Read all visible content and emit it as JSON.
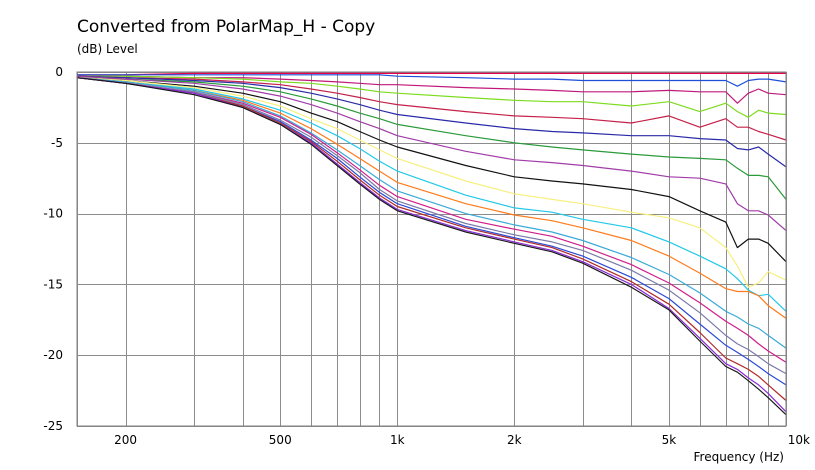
{
  "title": "Converted from PolarMap_H - Copy",
  "y_unit_label": "(dB)  Level",
  "x_axis_label": "Frequency  (Hz)",
  "chart_data": {
    "type": "line",
    "title": "Converted from PolarMap_H - Copy",
    "xlabel": "Frequency  (Hz)",
    "ylabel": "(dB)  Level",
    "x_scale": "log",
    "xlim": [
      150,
      10000
    ],
    "ylim": [
      -25,
      0
    ],
    "grid": true,
    "x_ticks": [
      {
        "value": 200,
        "label": "200"
      },
      {
        "value": 500,
        "label": "500"
      },
      {
        "value": 1000,
        "label": "1k"
      },
      {
        "value": 2000,
        "label": "2k"
      },
      {
        "value": 5000,
        "label": "5k"
      },
      {
        "value": 10000,
        "label": "10k"
      }
    ],
    "y_ticks": [
      {
        "value": 0,
        "label": "0"
      },
      {
        "value": -5,
        "label": "-5"
      },
      {
        "value": -10,
        "label": "-10"
      },
      {
        "value": -15,
        "label": "-15"
      },
      {
        "value": -20,
        "label": "-20"
      },
      {
        "value": -25,
        "label": "-25"
      }
    ],
    "x_gridlines": [
      150,
      200,
      300,
      400,
      500,
      600,
      700,
      800,
      900,
      1000,
      2000,
      3000,
      4000,
      5000,
      6000,
      7000,
      8000,
      9000,
      10000
    ],
    "y_gridlines": [
      0,
      -5,
      -10,
      -15,
      -20,
      -25
    ],
    "x": [
      150,
      200,
      300,
      400,
      500,
      600,
      700,
      800,
      900,
      1000,
      1500,
      2000,
      2500,
      3000,
      4000,
      5000,
      6000,
      7000,
      7500,
      8000,
      8500,
      9000,
      10000
    ],
    "series": [
      {
        "color": "#e8004a",
        "values": [
          -0.2,
          -0.2,
          -0.1,
          -0.1,
          -0.1,
          -0.1,
          -0.1,
          -0.1,
          -0.1,
          -0.1,
          -0.1,
          -0.1,
          -0.1,
          -0.1,
          -0.1,
          -0.1,
          -0.1,
          -0.1,
          -0.1,
          -0.1,
          -0.1,
          -0.1,
          -0.1
        ]
      },
      {
        "color": "#1d4ed8",
        "values": [
          -0.2,
          -0.2,
          -0.2,
          -0.2,
          -0.2,
          -0.2,
          -0.2,
          -0.2,
          -0.2,
          -0.3,
          -0.4,
          -0.5,
          -0.5,
          -0.6,
          -0.6,
          -0.6,
          -0.6,
          -0.6,
          -1.0,
          -0.6,
          -0.5,
          -0.5,
          -0.7
        ]
      },
      {
        "color": "#c0187a",
        "values": [
          -0.3,
          -0.3,
          -0.4,
          -0.4,
          -0.5,
          -0.6,
          -0.7,
          -0.8,
          -0.9,
          -0.9,
          -1.1,
          -1.2,
          -1.3,
          -1.4,
          -1.4,
          -1.3,
          -1.4,
          -1.4,
          -2.2,
          -1.5,
          -1.2,
          -1.5,
          -1.6
        ]
      },
      {
        "color": "#7ddc1f",
        "values": [
          -0.3,
          -0.3,
          -0.4,
          -0.5,
          -0.7,
          -0.8,
          -1.0,
          -1.2,
          -1.4,
          -1.5,
          -1.8,
          -2.0,
          -2.1,
          -2.1,
          -2.4,
          -2.1,
          -2.8,
          -2.2,
          -2.8,
          -3.2,
          -2.7,
          -2.9,
          -3.0
        ]
      },
      {
        "color": "#c4204a",
        "values": [
          -0.3,
          -0.4,
          -0.5,
          -0.7,
          -0.9,
          -1.2,
          -1.5,
          -1.8,
          -2.1,
          -2.3,
          -2.8,
          -3.1,
          -3.2,
          -3.3,
          -3.6,
          -3.1,
          -3.9,
          -3.3,
          -3.9,
          -3.9,
          -4.2,
          -4.4,
          -4.8
        ]
      },
      {
        "color": "#2a2aa8",
        "values": [
          -0.3,
          -0.4,
          -0.6,
          -0.8,
          -1.1,
          -1.5,
          -1.9,
          -2.3,
          -2.7,
          -3.0,
          -3.6,
          -4.0,
          -4.2,
          -4.3,
          -4.5,
          -4.5,
          -4.7,
          -4.8,
          -5.4,
          -5.5,
          -5.3,
          -5.8,
          -6.7
        ]
      },
      {
        "color": "#2a9a3a",
        "values": [
          -0.3,
          -0.5,
          -0.7,
          -1.0,
          -1.4,
          -1.9,
          -2.4,
          -2.9,
          -3.3,
          -3.7,
          -4.5,
          -5.0,
          -5.3,
          -5.5,
          -5.8,
          -6.0,
          -6.1,
          -6.2,
          -6.8,
          -7.3,
          -7.3,
          -7.4,
          -9.0
        ]
      },
      {
        "color": "#a13ca8",
        "values": [
          -0.3,
          -0.5,
          -0.8,
          -1.2,
          -1.7,
          -2.3,
          -2.9,
          -3.5,
          -4.0,
          -4.5,
          -5.6,
          -6.2,
          -6.4,
          -6.6,
          -7.0,
          -7.4,
          -7.5,
          -7.9,
          -9.3,
          -9.8,
          -9.8,
          -10.1,
          -11.2
        ]
      },
      {
        "color": "#111111",
        "values": [
          -0.4,
          -0.6,
          -1.0,
          -1.5,
          -2.1,
          -2.9,
          -3.5,
          -4.2,
          -4.8,
          -5.3,
          -6.6,
          -7.4,
          -7.7,
          -7.9,
          -8.3,
          -8.8,
          -9.8,
          -10.6,
          -12.4,
          -11.8,
          -11.8,
          -12.1,
          -13.4
        ]
      },
      {
        "color": "#f7f080",
        "values": [
          -0.4,
          -0.6,
          -1.1,
          -1.7,
          -2.4,
          -3.3,
          -4.0,
          -4.8,
          -5.5,
          -6.1,
          -7.7,
          -8.6,
          -9.0,
          -9.3,
          -9.9,
          -10.3,
          -11.0,
          -12.4,
          -13.7,
          -15.2,
          -14.9,
          -14.1,
          -14.7
        ]
      },
      {
        "color": "#22c8e8",
        "values": [
          -0.4,
          -0.7,
          -1.2,
          -1.9,
          -2.7,
          -3.6,
          -4.5,
          -5.4,
          -6.3,
          -7.0,
          -8.7,
          -9.6,
          -9.9,
          -10.4,
          -11.0,
          -12.0,
          -13.0,
          -13.9,
          -14.6,
          -15.4,
          -15.8,
          -15.7,
          -16.9
        ]
      },
      {
        "color": "#ff7a1a",
        "values": [
          -0.4,
          -0.7,
          -1.3,
          -2.0,
          -2.9,
          -4.0,
          -5.1,
          -6.1,
          -7.0,
          -7.8,
          -9.3,
          -10.1,
          -10.5,
          -11.0,
          -11.9,
          -13.0,
          -14.2,
          -15.3,
          -15.5,
          -15.5,
          -15.8,
          -16.5,
          -17.4
        ]
      },
      {
        "color": "#3aaad8",
        "values": [
          -0.4,
          -0.7,
          -1.3,
          -2.1,
          -3.1,
          -4.3,
          -5.5,
          -6.6,
          -7.6,
          -8.4,
          -10.0,
          -10.8,
          -11.3,
          -11.9,
          -13.1,
          -14.3,
          -15.6,
          -16.9,
          -17.3,
          -17.8,
          -18.1,
          -18.6,
          -19.5
        ]
      },
      {
        "color": "#d01e8a",
        "values": [
          -0.4,
          -0.8,
          -1.4,
          -2.2,
          -3.2,
          -4.4,
          -5.7,
          -6.9,
          -8.0,
          -8.8,
          -10.4,
          -11.1,
          -11.6,
          -12.3,
          -13.6,
          -14.9,
          -16.3,
          -17.6,
          -18.1,
          -18.6,
          -19.2,
          -19.7,
          -20.5
        ]
      },
      {
        "color": "#7a7aa8",
        "values": [
          -0.4,
          -0.8,
          -1.4,
          -2.3,
          -3.4,
          -4.6,
          -5.9,
          -7.1,
          -8.3,
          -9.1,
          -10.7,
          -11.5,
          -12.0,
          -12.6,
          -14.0,
          -15.4,
          -17.0,
          -18.6,
          -19.2,
          -19.6,
          -20.1,
          -20.6,
          -21.3
        ]
      },
      {
        "color": "#2a4ad8",
        "values": [
          -0.4,
          -0.8,
          -1.5,
          -2.4,
          -3.5,
          -4.8,
          -6.1,
          -7.4,
          -8.5,
          -9.3,
          -10.9,
          -11.7,
          -12.3,
          -13.0,
          -14.5,
          -16.0,
          -17.8,
          -19.3,
          -19.8,
          -20.3,
          -20.8,
          -21.3,
          -22.1
        ]
      },
      {
        "color": "#b02a2a",
        "values": [
          -0.4,
          -0.8,
          -1.5,
          -2.4,
          -3.6,
          -4.9,
          -6.3,
          -7.6,
          -8.7,
          -9.5,
          -11.0,
          -11.8,
          -12.4,
          -13.2,
          -14.8,
          -16.4,
          -18.4,
          -20.2,
          -20.6,
          -21.0,
          -21.5,
          -22.1,
          -23.2
        ]
      },
      {
        "color": "#8a2ad8",
        "values": [
          -0.4,
          -0.8,
          -1.5,
          -2.5,
          -3.7,
          -5.0,
          -6.5,
          -7.8,
          -8.9,
          -9.7,
          -11.2,
          -12.0,
          -12.6,
          -13.4,
          -15.0,
          -16.7,
          -18.8,
          -20.6,
          -21.0,
          -21.6,
          -22.1,
          -22.7,
          -24.0
        ]
      },
      {
        "color": "#1a1a1a",
        "values": [
          -0.4,
          -0.8,
          -1.6,
          -2.5,
          -3.7,
          -5.1,
          -6.6,
          -7.9,
          -9.0,
          -9.8,
          -11.3,
          -12.1,
          -12.7,
          -13.5,
          -15.2,
          -16.8,
          -19.0,
          -20.8,
          -21.2,
          -21.8,
          -22.4,
          -23.0,
          -24.2
        ]
      }
    ]
  }
}
